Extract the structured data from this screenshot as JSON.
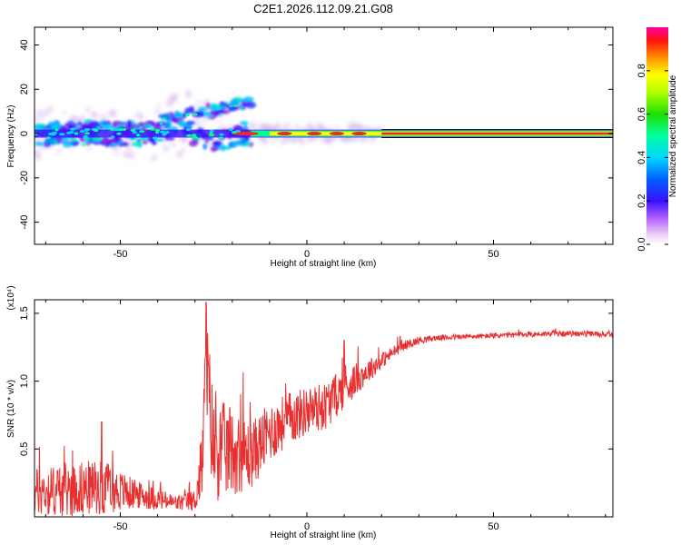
{
  "figure": {
    "title": "C2E1.2026.112.09.21.G08"
  },
  "chart_data": [
    {
      "type": "heatmap",
      "title": "C2E1.2026.112.09.21.G08",
      "xlabel": "Height of straight line (km)",
      "ylabel": "Frequency (Hz)",
      "xlim": [
        -73,
        82
      ],
      "ylim": [
        -50,
        48
      ],
      "xticks": [
        -50,
        0,
        50
      ],
      "yticks": [
        -40,
        -20,
        0,
        20,
        40
      ],
      "xtick_labels": [
        "-50",
        "0",
        "50"
      ],
      "ytick_labels": [
        "-40",
        "-20",
        "0",
        "20",
        "40"
      ],
      "colorbar": {
        "label": "Normalized spectral amplitude",
        "range": [
          0,
          1
        ],
        "ticks": [
          0.0,
          0.2,
          0.4,
          0.6,
          0.8
        ],
        "tick_labels": [
          "0.0",
          "0.2",
          "0.4",
          "0.6",
          "0.8"
        ],
        "colors": [
          "#ffffff",
          "#e9c8f5",
          "#9b30ff",
          "#2020ff",
          "#00c8ff",
          "#00ff80",
          "#30d000",
          "#ffff00",
          "#ff8000",
          "#ff0000",
          "#ff00a0"
        ]
      },
      "features": [
        {
          "name": "main-line",
          "x_start": -73,
          "x_end": 82,
          "freq": 0,
          "note": "dominant line near 0 Hz, peak amplitude from about -15 to 82 km"
        },
        {
          "name": "upper-branch",
          "x_start": -40,
          "x_end": -16,
          "freq_start": 5,
          "freq_end": 14
        },
        {
          "name": "noise-cloud",
          "x_start": -73,
          "x_end": -25,
          "freq_range": [
            -10,
            12
          ]
        }
      ]
    },
    {
      "type": "line",
      "xlabel": "Height of straight line (km)",
      "ylabel": "SNR (10 * v/v)",
      "y_multiplier": "(x10⁴)",
      "xlim": [
        -73,
        82
      ],
      "ylim": [
        0,
        1.6
      ],
      "xticks": [
        -50,
        0,
        50
      ],
      "yticks": [
        0.5,
        1.0,
        1.5
      ],
      "xtick_labels": [
        "-50",
        "0",
        "50"
      ],
      "ytick_labels": [
        "0.5",
        "1.0",
        "1.5"
      ],
      "color": "#e83030",
      "envelope": {
        "x": [
          -73,
          -65,
          -55,
          -45,
          -35,
          -30,
          -28,
          -27,
          -25,
          -20,
          -15,
          -10,
          -5,
          0,
          5,
          10,
          15,
          20,
          25,
          30,
          35,
          45,
          55,
          65,
          75,
          82
        ],
        "y_center": [
          0.18,
          0.2,
          0.22,
          0.16,
          0.1,
          0.12,
          0.4,
          1.1,
          0.5,
          0.48,
          0.45,
          0.62,
          0.72,
          0.78,
          0.82,
          0.95,
          1.05,
          1.15,
          1.25,
          1.3,
          1.32,
          1.33,
          1.34,
          1.35,
          1.35,
          1.34
        ],
        "y_spread": [
          0.18,
          0.2,
          0.2,
          0.1,
          0.06,
          0.08,
          0.3,
          0.45,
          0.4,
          0.32,
          0.25,
          0.22,
          0.2,
          0.18,
          0.18,
          0.15,
          0.1,
          0.06,
          0.04,
          0.03,
          0.02,
          0.02,
          0.02,
          0.02,
          0.02,
          0.02
        ]
      },
      "peaks": [
        {
          "x": -27,
          "y": 1.58
        },
        {
          "x": -55,
          "y": 0.7
        },
        {
          "x": 10,
          "y": 1.3
        }
      ]
    }
  ]
}
